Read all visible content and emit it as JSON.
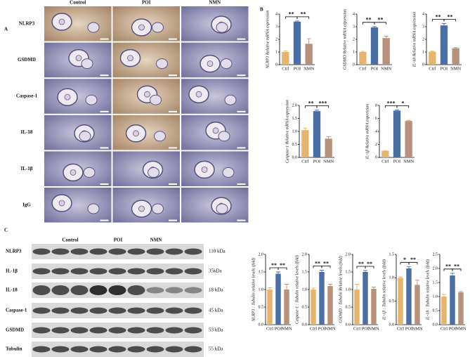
{
  "figure": {
    "panel_labels": [
      "A",
      "B",
      "C"
    ],
    "histology_columns": [
      "Control",
      "POI",
      "NMN"
    ],
    "histology_rows": [
      "NLRP3",
      "GSDMD",
      "Caspase-1",
      "IL-18",
      "IL-1β",
      "IgG"
    ],
    "blot_columns": [
      "Control",
      "POI",
      "NMN"
    ],
    "blot_rows": [
      {
        "protein": "NLRP3",
        "size": "110 kDa"
      },
      {
        "protein": "IL-1β",
        "size": "35kDa"
      },
      {
        "protein": "IL-18",
        "size": "18 kDa"
      },
      {
        "protein": "Caspase-1",
        "size": "45 kDa"
      },
      {
        "protein": "GSDMD",
        "size": "53 kDa"
      },
      {
        "protein": "Tubulin",
        "size": "55 kDa"
      }
    ]
  },
  "chart_data": [
    {
      "type": "bar",
      "ylabel": "NLRP3 Relative mRNA expression",
      "categories": [
        "Ctrl",
        "POI",
        "NMN"
      ],
      "values": [
        1.0,
        3.4,
        1.65
      ],
      "errors": [
        0.08,
        0.05,
        0.4
      ],
      "colors": [
        "#e6b46c",
        "#4a6fa5",
        "#b8917c"
      ],
      "ylim": [
        0,
        4
      ],
      "yticks": [
        0,
        1,
        2,
        3,
        4
      ],
      "significance": [
        "**",
        "**"
      ]
    },
    {
      "type": "bar",
      "ylabel": "GSDMD Relative mRNA expression",
      "categories": [
        "Ctrl",
        "POI",
        "NMN"
      ],
      "values": [
        1.0,
        2.95,
        2.1
      ],
      "errors": [
        0.05,
        0.06,
        0.15
      ],
      "colors": [
        "#e6b46c",
        "#4a6fa5",
        "#b8917c"
      ],
      "ylim": [
        0,
        4
      ],
      "yticks": [
        0,
        1,
        2,
        3,
        4
      ],
      "significance": [
        "**",
        "**"
      ]
    },
    {
      "type": "bar",
      "ylabel": "IL-18 Relative mRNA expression",
      "categories": [
        "Ctrl",
        "POI",
        "NMN"
      ],
      "values": [
        1.02,
        3.1,
        1.3
      ],
      "errors": [
        0.05,
        0.15,
        0.05
      ],
      "colors": [
        "#e6b46c",
        "#4a6fa5",
        "#b8917c"
      ],
      "ylim": [
        0,
        4
      ],
      "yticks": [
        0,
        1,
        2,
        3,
        4
      ],
      "significance": [
        "**",
        "**"
      ]
    },
    {
      "type": "bar",
      "ylabel": "Caspase-1 Relative mRNA expression",
      "categories": [
        "Ctrl",
        "POI",
        "NMN"
      ],
      "values": [
        1.05,
        1.78,
        0.72
      ],
      "errors": [
        0.08,
        0.04,
        0.08
      ],
      "colors": [
        "#e6b46c",
        "#4a6fa5",
        "#b8917c"
      ],
      "ylim": [
        0,
        2
      ],
      "yticks": [
        {
          "value": 0,
          "label": "0.0"
        },
        0.5,
        {
          "value": 1,
          "label": "1.0"
        },
        1.5,
        {
          "value": 2,
          "label": "2.0"
        }
      ],
      "significance": [
        "**",
        "***"
      ]
    },
    {
      "type": "bar",
      "ylabel": "IL-1β Relative mRNA expression",
      "categories": [
        "Ctrl",
        "POI",
        "NMN"
      ],
      "values": [
        1.0,
        7.2,
        5.6
      ],
      "errors": [
        0.05,
        0.1,
        0.1
      ],
      "colors": [
        "#e6b46c",
        "#4a6fa5",
        "#b8917c"
      ],
      "ylim": [
        0,
        8
      ],
      "yticks": [
        0,
        2,
        4,
        6,
        8
      ],
      "significance": [
        "***",
        "*"
      ]
    },
    {
      "type": "bar",
      "ylabel": "NLRP3 : Tubulin relative levels (fold)",
      "categories": [
        "Ctrl",
        "POI",
        "NMN"
      ],
      "values": [
        1.0,
        1.45,
        1.0
      ],
      "errors": [
        0.05,
        0.05,
        0.15
      ],
      "colors": [
        "#e6b46c",
        "#4a6fa5",
        "#b8917c"
      ],
      "ylim": [
        0,
        2
      ],
      "yticks": [
        {
          "value": 0,
          "label": "0.0"
        },
        0.5,
        {
          "value": 1,
          "label": "1.0"
        },
        1.5,
        {
          "value": 2,
          "label": "2.0"
        }
      ],
      "significance": [
        "**",
        "**"
      ]
    },
    {
      "type": "bar",
      "ylabel": "Caspase-1 : Tubulin relative levels (fold)",
      "categories": [
        "Ctrl",
        "POI",
        "NMN"
      ],
      "values": [
        1.0,
        1.5,
        1.1
      ],
      "errors": [
        0.04,
        0.05,
        0.05
      ],
      "colors": [
        "#e6b46c",
        "#4a6fa5",
        "#b8917c"
      ],
      "ylim": [
        0,
        2
      ],
      "yticks": [
        {
          "value": 0,
          "label": "0.0"
        },
        0.5,
        {
          "value": 1,
          "label": "1.0"
        },
        1.5,
        {
          "value": 2,
          "label": "2.0"
        }
      ],
      "significance": [
        "**",
        "**"
      ]
    },
    {
      "type": "bar",
      "ylabel": "GSDMD : Tubulin Relative levels (fold)",
      "categories": [
        "Ctrl",
        "POI",
        "NMN"
      ],
      "values": [
        1.0,
        1.5,
        1.02
      ],
      "errors": [
        0.15,
        0.04,
        0.05
      ],
      "colors": [
        "#e6b46c",
        "#4a6fa5",
        "#b8917c"
      ],
      "ylim": [
        0,
        2
      ],
      "yticks": [
        {
          "value": 0,
          "label": "0.0"
        },
        0.5,
        {
          "value": 1,
          "label": "1.0"
        },
        1.5,
        {
          "value": 2,
          "label": "2.0"
        }
      ],
      "significance": [
        "**",
        "**"
      ]
    },
    {
      "type": "bar",
      "ylabel": "IL-1β : Tubulin relative levels (fold)",
      "categories": [
        "Ctrl",
        "POI",
        "NMN"
      ],
      "values": [
        1.0,
        1.2,
        0.85
      ],
      "errors": [
        0.02,
        0.04,
        0.1
      ],
      "colors": [
        "#e6b46c",
        "#4a6fa5",
        "#b8917c"
      ],
      "ylim": [
        0,
        1.5
      ],
      "yticks": [
        {
          "value": 0,
          "label": "0.0"
        },
        0.5,
        {
          "value": 1,
          "label": "1.0"
        },
        1.5
      ],
      "significance": [
        "*",
        "**"
      ]
    },
    {
      "type": "bar",
      "ylabel": "IL-18 : Tubulin relative levels (fold)",
      "categories": [
        "Ctrl",
        "POI",
        "NMN"
      ],
      "values": [
        1.0,
        1.75,
        1.15
      ],
      "errors": [
        0.08,
        0.08,
        0.03
      ],
      "colors": [
        "#e6b46c",
        "#4a6fa5",
        "#b8917c"
      ],
      "ylim": [
        0,
        2.5
      ],
      "yticks": [
        {
          "value": 0,
          "label": "0.0"
        },
        0.5,
        {
          "value": 1,
          "label": "1.0"
        },
        1.5,
        {
          "value": 2,
          "label": "2.0"
        },
        2.5
      ],
      "significance": [
        "**",
        "**"
      ]
    }
  ]
}
